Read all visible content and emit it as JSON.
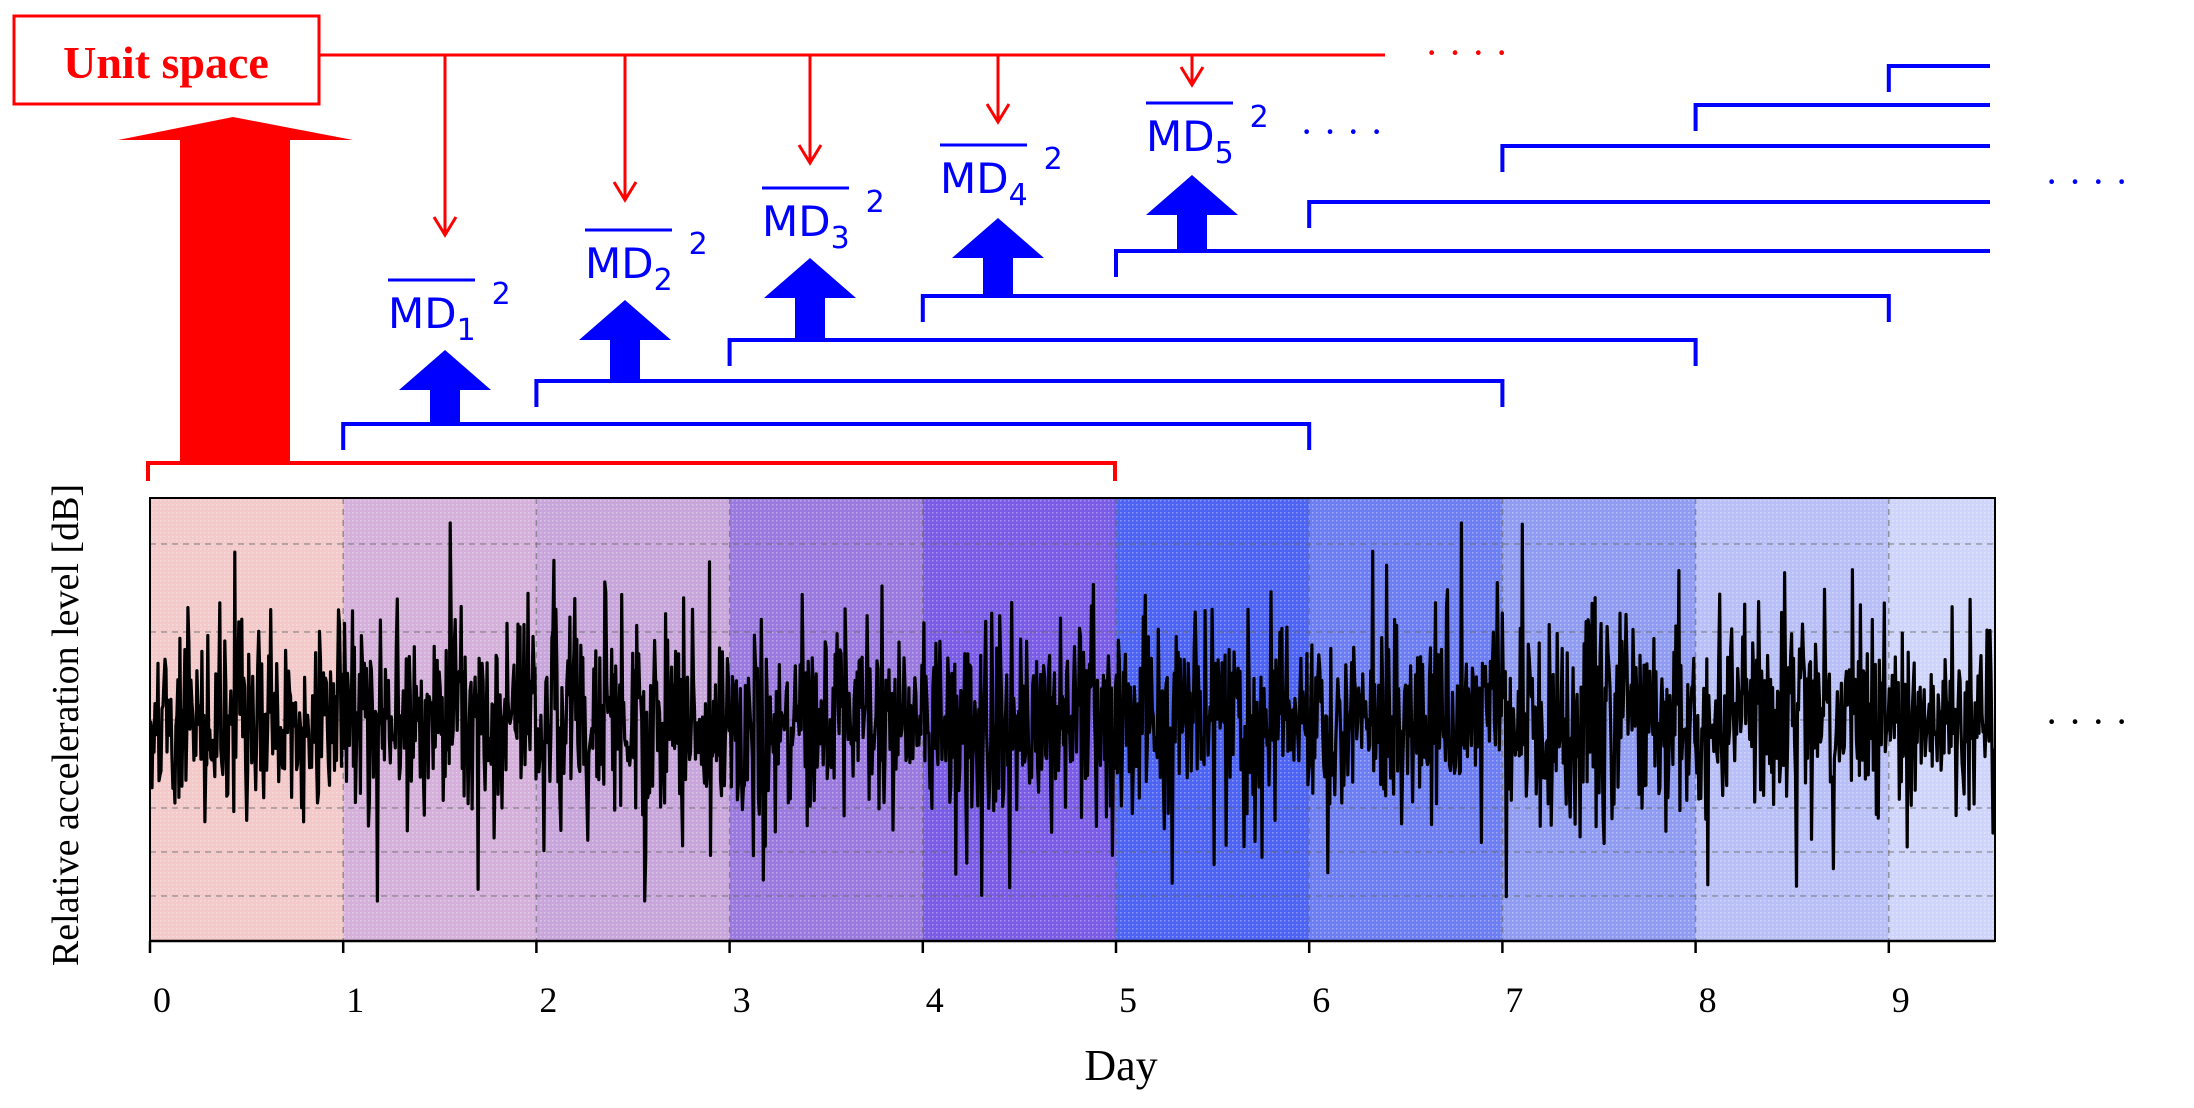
{
  "unit_space": {
    "label": "Unit space"
  },
  "md_labels": [
    {
      "base": "MD",
      "sub": "1",
      "sup": "2"
    },
    {
      "base": "MD",
      "sub": "2",
      "sup": "2"
    },
    {
      "base": "MD",
      "sub": "3",
      "sup": "2"
    },
    {
      "base": "MD",
      "sub": "4",
      "sup": "2"
    },
    {
      "base": "MD",
      "sub": "5",
      "sup": "2"
    }
  ],
  "ellipsis": "· · · ·",
  "colors": {
    "unit_space": "#ff0000",
    "md": "#0000ff",
    "signal": "#000000",
    "background_start": "#f4c6c6",
    "background_end": "#2233ee"
  },
  "chart_data": {
    "type": "line",
    "xlabel": "Day",
    "ylabel": "Relative  acceleration  level  [dB]",
    "x_ticks": [
      "0",
      "1",
      "2",
      "3",
      "4",
      "5",
      "6",
      "7",
      "8",
      "9"
    ],
    "xlim": [
      0,
      9.55
    ],
    "grid": true,
    "unit_space_window_days": [
      0,
      5
    ],
    "evaluation_windows_days": [
      [
        1,
        6
      ],
      [
        2,
        7
      ],
      [
        3,
        8
      ],
      [
        4,
        9
      ],
      [
        5,
        10
      ],
      [
        6,
        11
      ],
      [
        7,
        12
      ],
      [
        8,
        13
      ],
      [
        9,
        14
      ]
    ]
  }
}
